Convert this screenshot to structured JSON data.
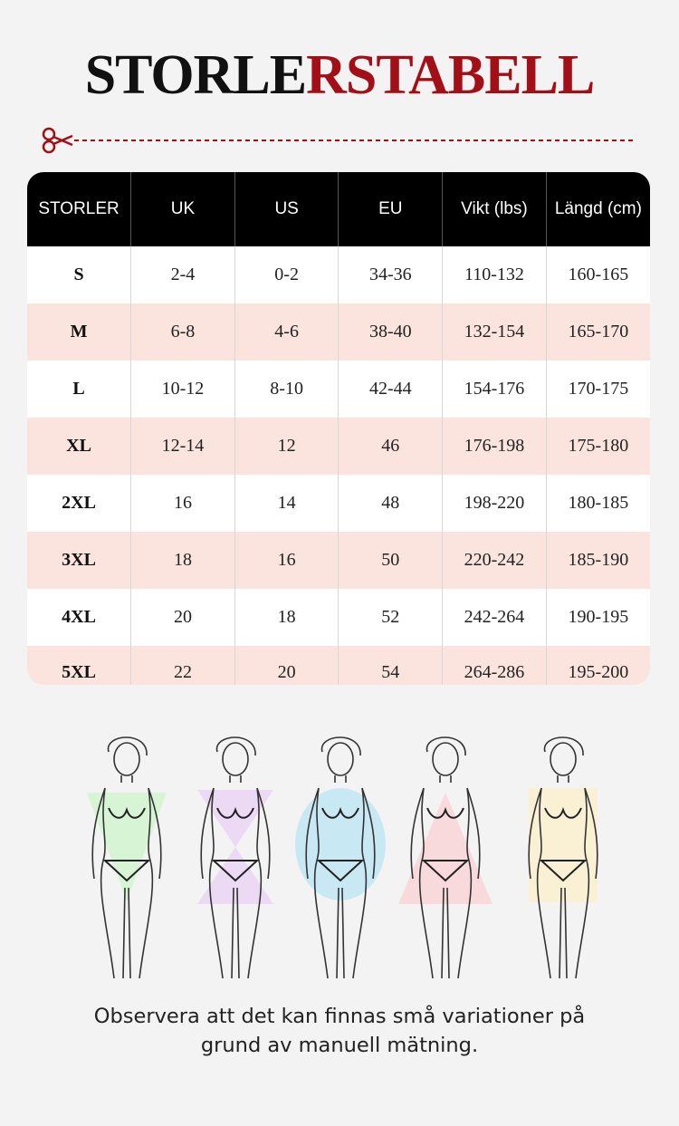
{
  "title": {
    "part1": "STORLE",
    "part2": "RSTABELL"
  },
  "table": {
    "headers": [
      "STORLER",
      "UK",
      "US",
      "EU",
      "Vikt (lbs)",
      "Längd (cm)"
    ],
    "rows": [
      [
        "S",
        "2-4",
        "0-2",
        "34-36",
        "110-132",
        "160-165"
      ],
      [
        "M",
        "6-8",
        "4-6",
        "38-40",
        "132-154",
        "165-170"
      ],
      [
        "L",
        "10-12",
        "8-10",
        "42-44",
        "154-176",
        "170-175"
      ],
      [
        "XL",
        "12-14",
        "12",
        "46",
        "176-198",
        "175-180"
      ],
      [
        "2XL",
        "16",
        "14",
        "48",
        "198-220",
        "180-185"
      ],
      [
        "3XL",
        "18",
        "16",
        "50",
        "220-242",
        "185-190"
      ],
      [
        "4XL",
        "20",
        "18",
        "52",
        "242-264",
        "190-195"
      ],
      [
        "5XL",
        "22",
        "20",
        "54",
        "264-286",
        "195-200"
      ]
    ]
  },
  "body_types": [
    {
      "icon": "body-type-v-icon",
      "color": "#d7f5d5"
    },
    {
      "icon": "body-type-hourglass-icon",
      "color": "#ecd9f4"
    },
    {
      "icon": "body-type-oval-icon",
      "color": "#c8e9f3"
    },
    {
      "icon": "body-type-triangle-icon",
      "color": "#f8d9dc"
    },
    {
      "icon": "body-type-rectangle-icon",
      "color": "#faf1d4"
    }
  ],
  "note": {
    "line1": "Observera att det kan finnas små variationer på",
    "line2": "grund av manuell mätning."
  },
  "colors": {
    "accent": "#a30f16",
    "header_bg": "#000000",
    "alt_row": "#fbe3de"
  }
}
